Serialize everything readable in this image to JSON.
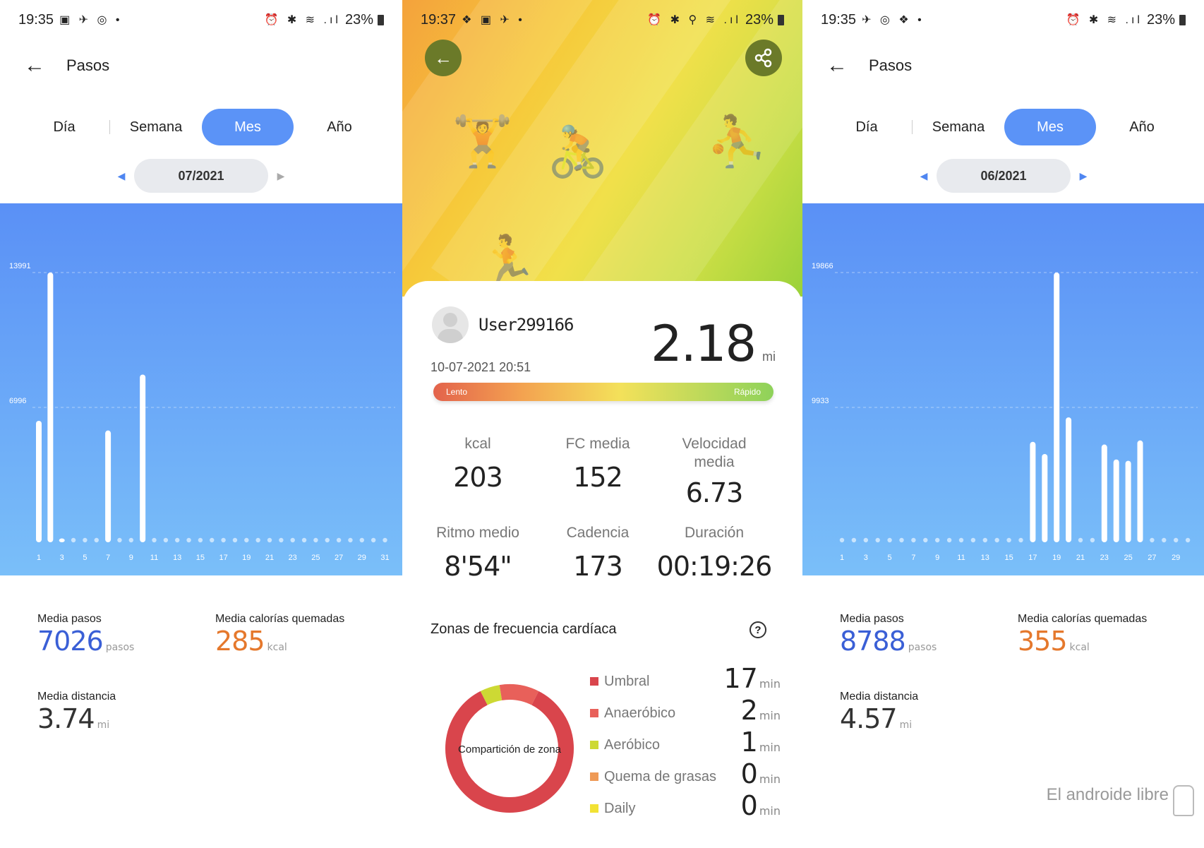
{
  "left": {
    "status": {
      "time": "19:35",
      "left_icons": "▣ ✈ ◎ •",
      "right_icons": "⏰ ✱ ≋ .ıl",
      "battery": "23%"
    },
    "header": {
      "title": "Pasos"
    },
    "tabs": [
      {
        "label": "Día"
      },
      {
        "label": "Semana"
      },
      {
        "label": "Mes"
      },
      {
        "label": "Año"
      }
    ],
    "active_tab": "Mes",
    "period": "07/2021",
    "stats": {
      "steps_label": "Media pasos",
      "steps_value": "7026",
      "steps_unit": "pasos",
      "cal_label": "Media calorías quemadas",
      "cal_value": "285",
      "cal_unit": "kcal",
      "dist_label": "Media distancia",
      "dist_value": "3.74",
      "dist_unit": "mi"
    }
  },
  "mid": {
    "status": {
      "time": "19:37",
      "left_icons": "❖ ▣ ✈ •",
      "right_icons": "⏰ ✱ ⚲ ≋ .ıl",
      "battery": "23%"
    },
    "user": "User299166",
    "datetime": "10-07-2021 20:51",
    "distance": "2.18",
    "distance_unit": "mi",
    "pace_slow": "Lento",
    "pace_fast": "Rápido",
    "metrics": [
      {
        "label": "kcal",
        "value": "203"
      },
      {
        "label": "FC media",
        "value": "152"
      },
      {
        "label": "Velocidad media",
        "value": "6.73"
      },
      {
        "label": "Ritmo medio",
        "value": "8'54\""
      },
      {
        "label": "Cadencia",
        "value": "173"
      },
      {
        "label": "Duración",
        "value": "00:19:26"
      }
    ],
    "zones_title": "Zonas de frecuencia cardíaca",
    "donut_label": "Compartición de zona",
    "zones": [
      {
        "name": "Umbral",
        "value": "17",
        "unit": "min",
        "color": "#d9454c"
      },
      {
        "name": "Anaeróbico",
        "value": "2",
        "unit": "min",
        "color": "#e8605a"
      },
      {
        "name": "Aeróbico",
        "value": "1",
        "unit": "min",
        "color": "#cdd934"
      },
      {
        "name": "Quema de grasas",
        "value": "0",
        "unit": "min",
        "color": "#ef9a56"
      },
      {
        "name": "Daily",
        "value": "0",
        "unit": "min",
        "color": "#f2e234"
      }
    ]
  },
  "right": {
    "status": {
      "time": "19:35",
      "left_icons": "✈ ◎ ❖ •",
      "right_icons": "⏰ ✱ ≋ .ıl",
      "battery": "23%"
    },
    "header": {
      "title": "Pasos"
    },
    "tabs": [
      {
        "label": "Día"
      },
      {
        "label": "Semana"
      },
      {
        "label": "Mes"
      },
      {
        "label": "Año"
      }
    ],
    "active_tab": "Mes",
    "period": "06/2021",
    "stats": {
      "steps_label": "Media pasos",
      "steps_value": "8788",
      "steps_unit": "pasos",
      "cal_label": "Media calorías quemadas",
      "cal_value": "355",
      "cal_unit": "kcal",
      "dist_label": "Media distancia",
      "dist_value": "4.57",
      "dist_unit": "mi"
    }
  },
  "watermark": "El androide libre",
  "chart_data": [
    {
      "type": "bar",
      "categories": [
        "1",
        "2",
        "3",
        "4",
        "5",
        "6",
        "7",
        "8",
        "9",
        "10",
        "11",
        "12",
        "13",
        "14",
        "15",
        "16",
        "17",
        "18",
        "19",
        "20",
        "21",
        "22",
        "23",
        "24",
        "25",
        "26",
        "27",
        "28",
        "29",
        "30",
        "31"
      ],
      "tick_labels": [
        "1",
        "3",
        "5",
        "7",
        "9",
        "11",
        "13",
        "15",
        "17",
        "19",
        "21",
        "23",
        "25",
        "27",
        "29",
        "31"
      ],
      "y_ticks": [
        "13991",
        "6996"
      ],
      "ylim": [
        0,
        13991
      ],
      "values": [
        6300,
        13991,
        200,
        0,
        0,
        0,
        5800,
        0,
        0,
        8700,
        0,
        0,
        0,
        0,
        0,
        0,
        0,
        0,
        0,
        0,
        0,
        0,
        0,
        0,
        0,
        0,
        0,
        0,
        0,
        0,
        0
      ],
      "grid": true
    },
    {
      "type": "bar",
      "categories": [
        "1",
        "2",
        "3",
        "4",
        "5",
        "6",
        "7",
        "8",
        "9",
        "10",
        "11",
        "12",
        "13",
        "14",
        "15",
        "16",
        "17",
        "18",
        "19",
        "20",
        "21",
        "22",
        "23",
        "24",
        "25",
        "26",
        "27",
        "28",
        "29",
        "30"
      ],
      "tick_labels": [
        "1",
        "3",
        "5",
        "7",
        "9",
        "11",
        "13",
        "15",
        "17",
        "19",
        "21",
        "23",
        "25",
        "27",
        "29"
      ],
      "y_ticks": [
        "19866",
        "9933"
      ],
      "ylim": [
        0,
        19866
      ],
      "values": [
        0,
        0,
        0,
        0,
        0,
        0,
        0,
        0,
        0,
        0,
        0,
        0,
        0,
        0,
        0,
        0,
        7400,
        6500,
        19866,
        9200,
        0,
        0,
        7200,
        6100,
        6000,
        7500,
        0,
        0,
        0,
        0
      ],
      "grid": true
    }
  ]
}
